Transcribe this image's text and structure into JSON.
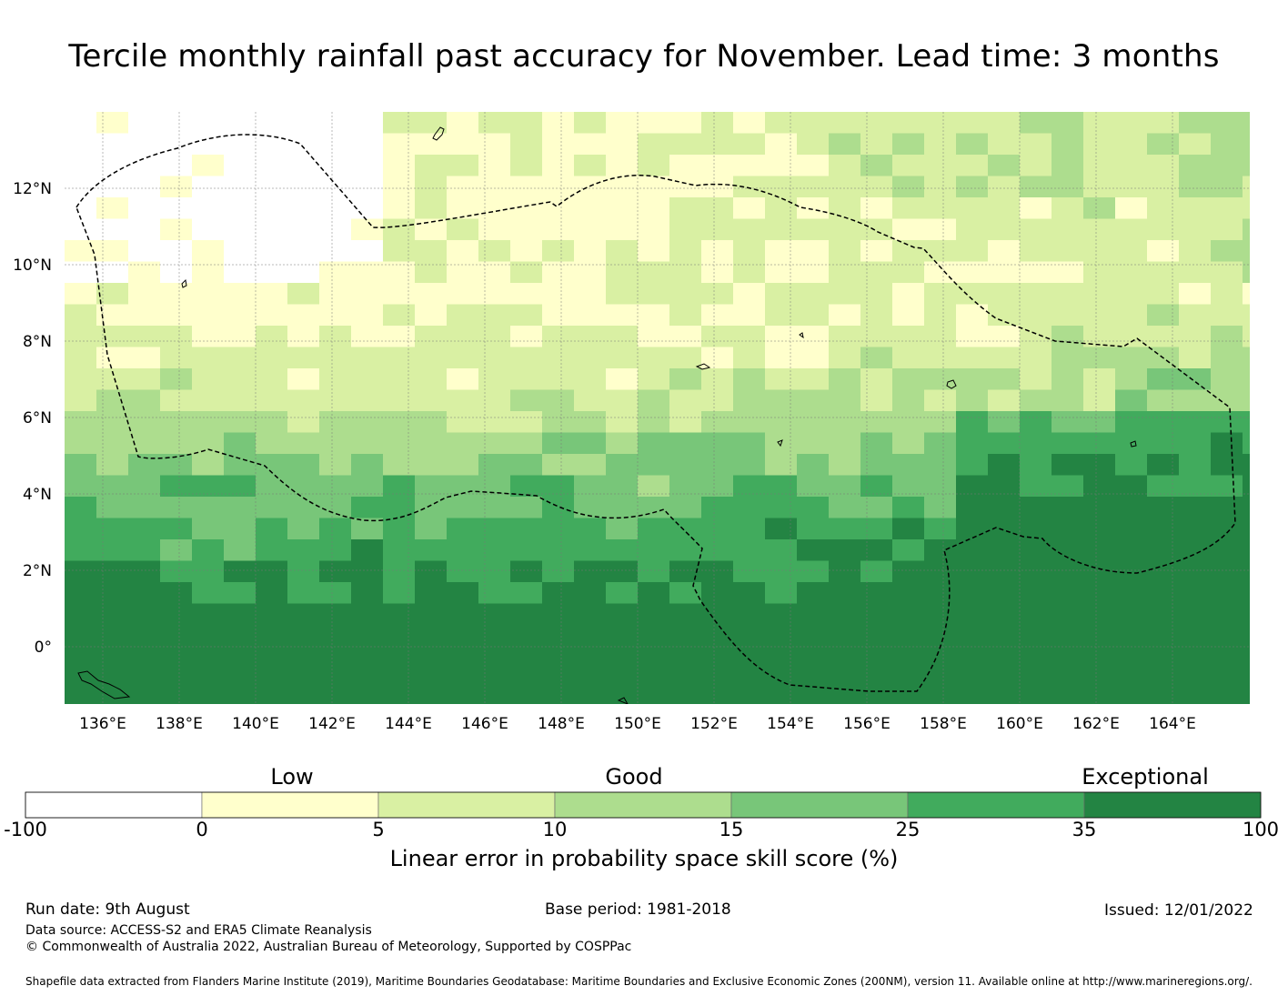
{
  "title": "Tercile monthly rainfall past accuracy for November. Lead time: 3 months",
  "map": {
    "lon_ticks": [
      "136°E",
      "138°E",
      "140°E",
      "142°E",
      "144°E",
      "146°E",
      "148°E",
      "150°E",
      "152°E",
      "154°E",
      "156°E",
      "158°E",
      "160°E",
      "162°E",
      "164°E"
    ],
    "lat_ticks": [
      "12°N",
      "10°N",
      "8°N",
      "6°N",
      "4°N",
      "2°N",
      "0°"
    ]
  },
  "colorbar": {
    "categories": [
      "Low",
      "Good",
      "Exceptional"
    ],
    "ticks": [
      "-100",
      "0",
      "5",
      "10",
      "15",
      "25",
      "35",
      "100"
    ],
    "colors": [
      "#ffffff",
      "#ffffcc",
      "#d9f0a3",
      "#addd8e",
      "#78c679",
      "#41ab5d",
      "#238443"
    ],
    "label": "Linear error in probability space skill score (%)"
  },
  "footer": {
    "run_date": "Run date: 9th August",
    "base_period": "Base period: 1981-2018",
    "issued": "Issued: 12/01/2022",
    "data_source": "Data source: ACCESS-S2 and ERA5 Climate Reanalysis",
    "copyright": "© Commonwealth of Australia 2022, Australian Bureau of Meteorology, Supported by COSPPac",
    "shapefile": "Shapefile data extracted from Flanders Marine Institute (2019), Maritime Boundaries Geodatabase: Maritime Boundaries and Exclusive Economic Zones (200NM), version 11. Available online at http://www.marineregions.org/."
  }
}
